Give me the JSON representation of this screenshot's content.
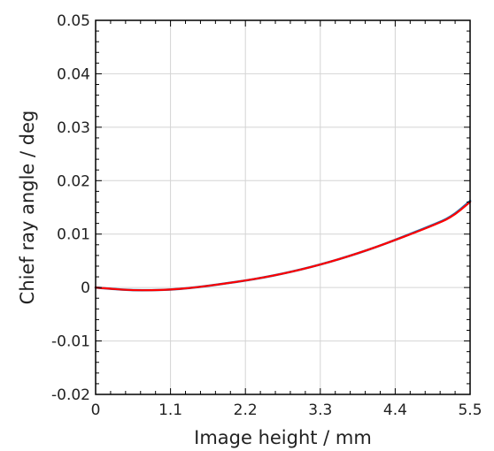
{
  "chart_data": {
    "type": "line",
    "title": "",
    "xlabel": "Image height / mm",
    "ylabel": "Chief ray angle / deg",
    "xlim": [
      0,
      5.5
    ],
    "ylim": [
      -0.02,
      0.05
    ],
    "x_ticks": [
      0,
      1.1,
      2.2,
      3.3,
      4.4,
      5.5
    ],
    "x_tick_labels": [
      "0",
      "1.1",
      "2.2",
      "3.3",
      "4.4",
      "5.5"
    ],
    "y_ticks": [
      -0.02,
      -0.01,
      0,
      0.01,
      0.02,
      0.03,
      0.04,
      0.05
    ],
    "y_tick_labels": [
      "-0.02",
      "-0.01",
      "0",
      "0.01",
      "0.02",
      "0.03",
      "0.04",
      "0.05"
    ],
    "grid": true,
    "x": [
      0,
      0.275,
      0.55,
      0.825,
      1.1,
      1.375,
      1.65,
      1.925,
      2.2,
      2.475,
      2.75,
      3.025,
      3.3,
      3.575,
      3.85,
      4.125,
      4.4,
      4.675,
      4.95,
      5.225,
      5.5
    ],
    "series": [
      {
        "color": "#1f77b4",
        "values": [
          0,
          -0.0003,
          -0.0005,
          -0.0005,
          -0.0004,
          -0.0001,
          0.0003,
          0.0008,
          0.0013,
          0.0019,
          0.0026,
          0.0034,
          0.0043,
          0.0053,
          0.0064,
          0.0076,
          0.0089,
          0.0103,
          0.0117,
          0.0132,
          0.0162
        ]
      },
      {
        "color": "#ff0000",
        "values": [
          0,
          -0.0003,
          -0.0005,
          -0.0005,
          -0.0004,
          -0.0001,
          0.0003,
          0.0008,
          0.0013,
          0.0019,
          0.0026,
          0.0034,
          0.0043,
          0.0053,
          0.0064,
          0.0076,
          0.0089,
          0.0102,
          0.0116,
          0.0131,
          0.016
        ]
      }
    ]
  }
}
